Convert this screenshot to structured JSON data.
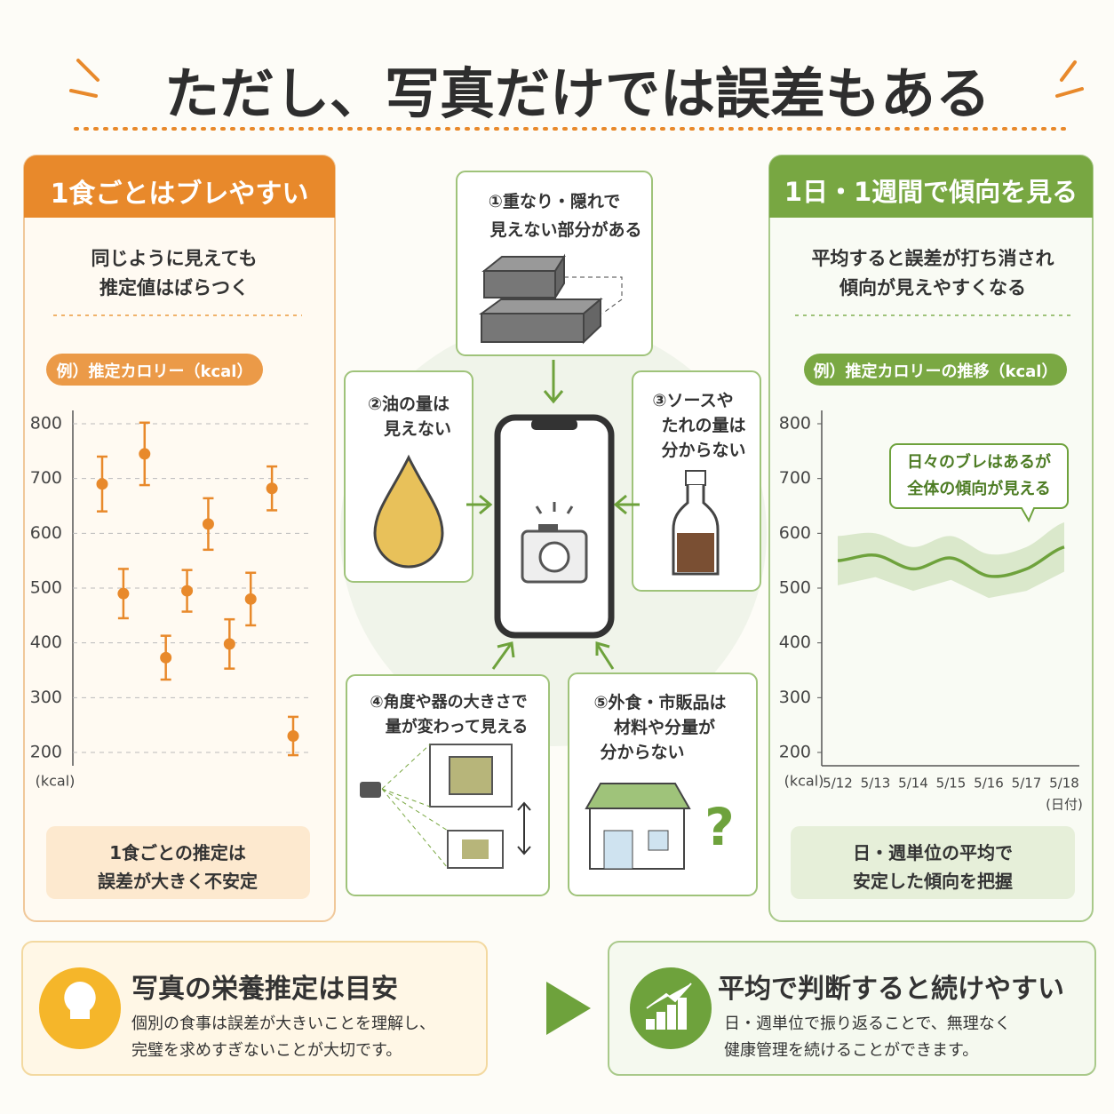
{
  "title": "ただし、写真だけでは誤差もある",
  "left": {
    "heading": "1食ごとはブレやすい",
    "text": [
      "同じように見えても",
      "推定値はばらつく"
    ],
    "chart_label": "例）推定カロリー（kcal）",
    "note": [
      "1食ごとの推定は",
      "誤差が大きく不安定"
    ]
  },
  "right": {
    "heading": "1日・1週間で傾向を見る",
    "text": [
      "平均すると誤差が打ち消され",
      "傾向が見えやすくなる"
    ],
    "chart_label": "例）推定カロリーの推移（kcal）",
    "callout": [
      "日々のブレはあるが",
      "全体の傾向が見える"
    ],
    "note": [
      "日・週単位の平均で",
      "安定した傾向を把握"
    ]
  },
  "causes": [
    {
      "label": [
        "①重なり・隠れで",
        "見えない部分がある"
      ]
    },
    {
      "label": [
        "②油の量は",
        "見えない"
      ]
    },
    {
      "label": [
        "③ソースや",
        "たれの量は",
        "分からない"
      ]
    },
    {
      "label": [
        "④角度や器の大きさで",
        "量が変わって見える"
      ]
    },
    {
      "label": [
        "⑤外食・市販品は",
        "材料や分量が",
        "分からない"
      ]
    }
  ],
  "bottom": [
    {
      "heading": "写真の栄養推定は目安",
      "text": [
        "個別の食事は誤差が大きいことを理解し、",
        "完璧を求めすぎないことが大切です。"
      ]
    },
    {
      "heading": "平均で判断すると続けやすい",
      "text": [
        "日・週単位で振り返ることで、無理なく",
        "健康管理を続けることができます。"
      ]
    }
  ],
  "chart_data": [
    {
      "type": "errorbar",
      "values": [
        690,
        490,
        745,
        373,
        495,
        617,
        398,
        480,
        682,
        230
      ],
      "errors": [
        50,
        45,
        57,
        40,
        38,
        47,
        45,
        48,
        40,
        35
      ],
      "color": "#e8892b",
      "ylim": [
        200,
        800
      ],
      "yticks": [
        200,
        300,
        400,
        500,
        600,
        700,
        800
      ],
      "ylabel": "(kcal)",
      "grid": true
    },
    {
      "type": "line",
      "categories": [
        "5/12",
        "5/13",
        "5/14",
        "5/15",
        "5/16",
        "5/17",
        "5/18"
      ],
      "values": [
        550,
        560,
        535,
        555,
        522,
        535,
        575
      ],
      "upper": [
        595,
        600,
        575,
        595,
        562,
        575,
        620
      ],
      "lower": [
        505,
        520,
        495,
        515,
        482,
        495,
        530
      ],
      "color": "#6ea23c",
      "ylim": [
        200,
        800
      ],
      "yticks": [
        200,
        300,
        400,
        500,
        600,
        700,
        800
      ],
      "ylabel": "(kcal)",
      "xlabel": "(日付)",
      "grid": false
    }
  ]
}
